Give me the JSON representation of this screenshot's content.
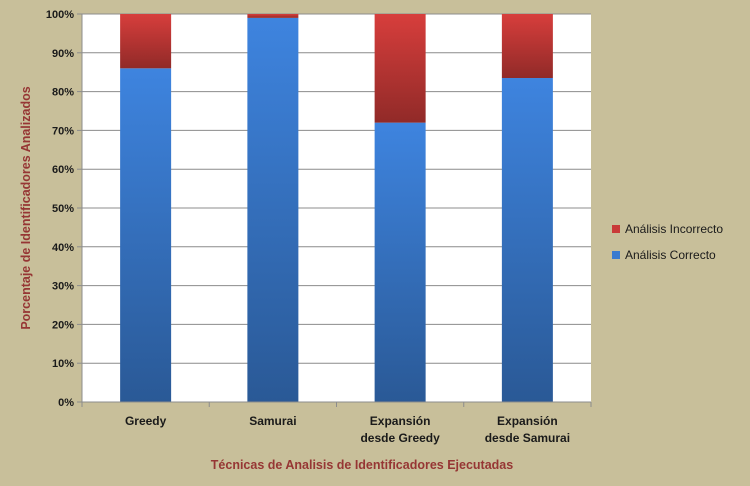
{
  "chart_data": {
    "type": "bar",
    "stacked": true,
    "normalized": true,
    "categories": [
      [
        "Greedy"
      ],
      [
        "Samurai"
      ],
      [
        "Expansión",
        "desde Greedy"
      ],
      [
        "Expansión",
        "desde Samurai"
      ]
    ],
    "series": [
      {
        "name": "Análisis Correcto",
        "values": [
          86,
          99,
          72,
          83.5
        ],
        "color": "#3a7bd0"
      },
      {
        "name": "Análisis Incorrecto",
        "values": [
          14,
          1,
          28,
          16.5
        ],
        "color": "#c93a38"
      }
    ],
    "yticks": [
      "0%",
      "10%",
      "20%",
      "30%",
      "40%",
      "50%",
      "60%",
      "70%",
      "80%",
      "90%",
      "100%"
    ],
    "ylim": [
      0,
      100
    ],
    "xlabel": "Técnicas de Analisis de Identificadores Ejecutadas",
    "ylabel": "Porcentaje de Identificadores Analizados",
    "legend": {
      "position": "right",
      "order": [
        "Análisis Incorrecto",
        "Análisis Correcto"
      ]
    },
    "grid": true,
    "background_color": "#c8bf9a",
    "plot_background": "#ffffff"
  }
}
